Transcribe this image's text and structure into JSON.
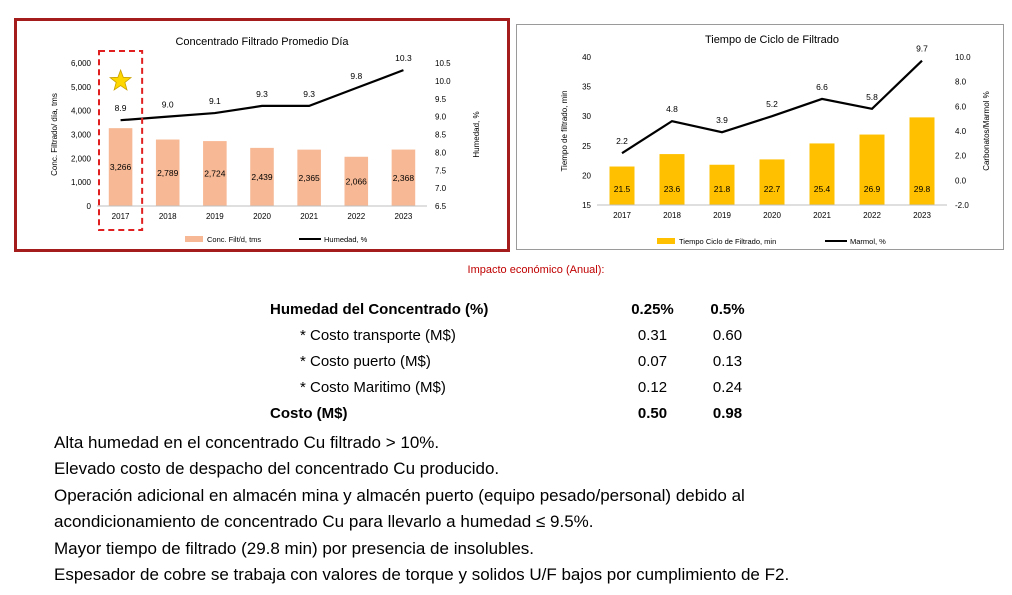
{
  "chart_data": [
    {
      "type": "bar+line",
      "title": "Concentrado Filtrado Promedio Día",
      "categories": [
        "2017",
        "2018",
        "2019",
        "2020",
        "2021",
        "2022",
        "2023"
      ],
      "series": [
        {
          "name": "Conc. Filt/d, tms",
          "type": "bar",
          "axis": "left",
          "color": "#f7b995",
          "values": [
            3266,
            2789,
            2724,
            2439,
            2365,
            2066,
            2368
          ],
          "labels": [
            "3,266",
            "2,789",
            "2,724",
            "2,439",
            "2,365",
            "2,066",
            "2,368"
          ]
        },
        {
          "name": "Humedad, %",
          "type": "line",
          "axis": "right",
          "color": "#000000",
          "values": [
            8.9,
            9.0,
            9.1,
            9.3,
            9.3,
            9.8,
            10.3
          ],
          "labels": [
            "8.9",
            "9.0",
            "9.1",
            "9.3",
            "9.3",
            "9.8",
            "10.3"
          ]
        }
      ],
      "ylabel": "Conc. Filtrado/ día, tms",
      "y2label": "Humedad, %",
      "ylim": [
        0,
        6000
      ],
      "yticks": [
        "0",
        "1,000",
        "2,000",
        "3,000",
        "4,000",
        "5,000",
        "6,000"
      ],
      "y2lim": [
        6.5,
        10.5
      ],
      "y2ticks": [
        "6.5",
        "7.0",
        "7.5",
        "8.0",
        "8.5",
        "9.0",
        "9.5",
        "10.0",
        "10.5"
      ],
      "legend": "bottom",
      "highlight_category": "2017",
      "highlight_icon": "star-icon",
      "grid": false
    },
    {
      "type": "bar+line",
      "title": "Tiempo de Ciclo de Filtrado",
      "categories": [
        "2017",
        "2018",
        "2019",
        "2020",
        "2021",
        "2022",
        "2023"
      ],
      "series": [
        {
          "name": "Tiempo Ciclo de Filtrado, min",
          "type": "bar",
          "axis": "left",
          "color": "#ffc000",
          "values": [
            21.5,
            23.6,
            21.8,
            22.7,
            25.4,
            26.9,
            29.8
          ],
          "labels": [
            "21.5",
            "23.6",
            "21.8",
            "22.7",
            "25.4",
            "26.9",
            "29.8"
          ]
        },
        {
          "name": "Marmol, %",
          "type": "line",
          "axis": "right",
          "color": "#000000",
          "values": [
            2.2,
            4.8,
            3.9,
            5.2,
            6.6,
            5.8,
            9.7
          ],
          "labels": [
            "2.2",
            "4.8",
            "3.9",
            "5.2",
            "6.6",
            "5.8",
            "9.7"
          ]
        }
      ],
      "ylabel": "Tiempo de filtrado, min",
      "y2label": "Carbonatos/Marmol %",
      "ylim": [
        15,
        40
      ],
      "yticks": [
        "15",
        "20",
        "25",
        "30",
        "35",
        "40"
      ],
      "y2lim": [
        -2,
        10
      ],
      "y2ticks": [
        "-2.0",
        "0.0",
        "2.0",
        "4.0",
        "6.0",
        "8.0",
        "10.0"
      ],
      "legend": "bottom",
      "grid": false
    }
  ],
  "impact": {
    "label": "Impacto económico  (Anual):",
    "header": {
      "label": "Humedad del Concentrado (%)",
      "v1": "0.25%",
      "v2": "0.5%"
    },
    "rows": [
      {
        "label": "* Costo transporte (M$)",
        "v1": "0.31",
        "v2": "0.60"
      },
      {
        "label": "* Costo puerto (M$)",
        "v1": "0.07",
        "v2": "0.13"
      },
      {
        "label": "* Costo Maritimo (M$)",
        "v1": "0.12",
        "v2": "0.24"
      }
    ],
    "total": {
      "label": "Costo (M$)",
      "v1": "0.50",
      "v2": "0.98"
    }
  },
  "notes": [
    "Alta humedad en el concentrado Cu filtrado > 10%.",
    "Elevado costo de despacho del concentrado Cu producido.",
    "Operación adicional en almacén mina y almacén puerto (equipo pesado/personal) debido al",
    "acondicionamiento de concentrado Cu para llevarlo a humedad ≤ 9.5%.",
    "Mayor tiempo de filtrado (29.8 min) por presencia de insolubles.",
    "Espesador de cobre se trabaja con valores de torque y solidos U/F bajos por cumplimiento de F2."
  ]
}
